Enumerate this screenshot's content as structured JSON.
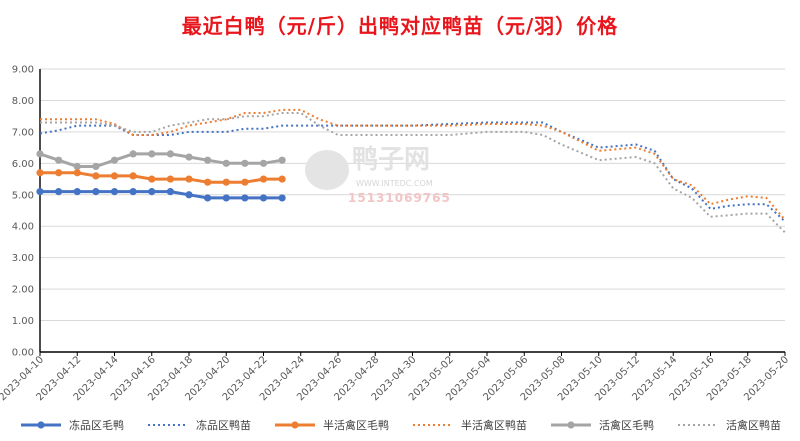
{
  "chart_data": {
    "type": "line",
    "title": "最近白鸭（元/斤）出鸭对应鸭苗（元/羽）价格",
    "xlabel": "",
    "ylabel": "",
    "ylim": [
      0,
      9
    ],
    "y_ticks": [
      "0.00",
      "1.00",
      "2.00",
      "3.00",
      "4.00",
      "5.00",
      "6.00",
      "7.00",
      "8.00",
      "9.00"
    ],
    "x_ticks": [
      "2023-04-10",
      "2023-04-12",
      "2023-04-14",
      "2023-04-16",
      "2023-04-18",
      "2023-04-20",
      "2023-04-22",
      "2023-04-24",
      "2023-04-26",
      "2023-04-28",
      "2023-04-30",
      "2023-05-02",
      "2023-05-04",
      "2023-05-06",
      "2023-05-08",
      "2023-05-10",
      "2023-05-12",
      "2023-05-14",
      "2023-05-16",
      "2023-05-18",
      "2023-05-20"
    ],
    "x_start": "2023-04-10",
    "x_end": "2023-05-20",
    "grid": "horizontal",
    "legend_position": "bottom",
    "series": [
      {
        "name": "冻品区毛鸭",
        "color": "#4472c4",
        "style": "solid-marker",
        "points": [
          [
            "2023-04-10",
            5.1
          ],
          [
            "2023-04-11",
            5.1
          ],
          [
            "2023-04-12",
            5.1
          ],
          [
            "2023-04-13",
            5.1
          ],
          [
            "2023-04-14",
            5.1
          ],
          [
            "2023-04-15",
            5.1
          ],
          [
            "2023-04-16",
            5.1
          ],
          [
            "2023-04-17",
            5.1
          ],
          [
            "2023-04-18",
            5.0
          ],
          [
            "2023-04-19",
            4.9
          ],
          [
            "2023-04-20",
            4.9
          ],
          [
            "2023-04-21",
            4.9
          ],
          [
            "2023-04-22",
            4.9
          ],
          [
            "2023-04-23",
            4.9
          ]
        ]
      },
      {
        "name": "冻品区鸭苗",
        "color": "#4472c4",
        "style": "dotted",
        "points": [
          [
            "2023-04-10",
            6.95
          ],
          [
            "2023-04-11",
            7.05
          ],
          [
            "2023-04-12",
            7.2
          ],
          [
            "2023-04-13",
            7.2
          ],
          [
            "2023-04-14",
            7.2
          ],
          [
            "2023-04-15",
            6.9
          ],
          [
            "2023-04-16",
            6.9
          ],
          [
            "2023-04-17",
            6.9
          ],
          [
            "2023-04-18",
            7.0
          ],
          [
            "2023-04-19",
            7.0
          ],
          [
            "2023-04-20",
            7.0
          ],
          [
            "2023-04-21",
            7.1
          ],
          [
            "2023-04-22",
            7.1
          ],
          [
            "2023-04-23",
            7.2
          ],
          [
            "2023-04-26",
            7.2
          ],
          [
            "2023-04-30",
            7.2
          ],
          [
            "2023-05-02",
            7.25
          ],
          [
            "2023-05-04",
            7.3
          ],
          [
            "2023-05-06",
            7.3
          ],
          [
            "2023-05-07",
            7.3
          ],
          [
            "2023-05-08",
            7.0
          ],
          [
            "2023-05-10",
            6.5
          ],
          [
            "2023-05-12",
            6.6
          ],
          [
            "2023-05-13",
            6.4
          ],
          [
            "2023-05-14",
            5.5
          ],
          [
            "2023-05-15",
            5.2
          ],
          [
            "2023-05-16",
            4.55
          ],
          [
            "2023-05-17",
            4.65
          ],
          [
            "2023-05-18",
            4.7
          ],
          [
            "2023-05-19",
            4.7
          ],
          [
            "2023-05-20",
            4.15
          ]
        ]
      },
      {
        "name": "半活禽区毛鸭",
        "color": "#ed7d31",
        "style": "solid-marker",
        "points": [
          [
            "2023-04-10",
            5.7
          ],
          [
            "2023-04-11",
            5.7
          ],
          [
            "2023-04-12",
            5.7
          ],
          [
            "2023-04-13",
            5.6
          ],
          [
            "2023-04-14",
            5.6
          ],
          [
            "2023-04-15",
            5.6
          ],
          [
            "2023-04-16",
            5.5
          ],
          [
            "2023-04-17",
            5.5
          ],
          [
            "2023-04-18",
            5.5
          ],
          [
            "2023-04-19",
            5.4
          ],
          [
            "2023-04-20",
            5.4
          ],
          [
            "2023-04-21",
            5.4
          ],
          [
            "2023-04-22",
            5.5
          ],
          [
            "2023-04-23",
            5.5
          ]
        ]
      },
      {
        "name": "半活禽区鸭苗",
        "color": "#ed7d31",
        "style": "dotted",
        "points": [
          [
            "2023-04-10",
            7.4
          ],
          [
            "2023-04-11",
            7.4
          ],
          [
            "2023-04-12",
            7.4
          ],
          [
            "2023-04-13",
            7.4
          ],
          [
            "2023-04-14",
            7.25
          ],
          [
            "2023-04-15",
            6.9
          ],
          [
            "2023-04-16",
            6.9
          ],
          [
            "2023-04-17",
            7.0
          ],
          [
            "2023-04-18",
            7.2
          ],
          [
            "2023-04-19",
            7.3
          ],
          [
            "2023-04-20",
            7.4
          ],
          [
            "2023-04-21",
            7.6
          ],
          [
            "2023-04-22",
            7.6
          ],
          [
            "2023-04-23",
            7.7
          ],
          [
            "2023-04-24",
            7.7
          ],
          [
            "2023-04-25",
            7.4
          ],
          [
            "2023-04-26",
            7.2
          ],
          [
            "2023-04-30",
            7.2
          ],
          [
            "2023-05-02",
            7.2
          ],
          [
            "2023-05-04",
            7.25
          ],
          [
            "2023-05-06",
            7.25
          ],
          [
            "2023-05-07",
            7.2
          ],
          [
            "2023-05-08",
            7.0
          ],
          [
            "2023-05-10",
            6.4
          ],
          [
            "2023-05-12",
            6.5
          ],
          [
            "2023-05-13",
            6.3
          ],
          [
            "2023-05-14",
            5.5
          ],
          [
            "2023-05-15",
            5.3
          ],
          [
            "2023-05-16",
            4.7
          ],
          [
            "2023-05-17",
            4.85
          ],
          [
            "2023-05-18",
            4.95
          ],
          [
            "2023-05-19",
            4.9
          ],
          [
            "2023-05-20",
            4.2
          ]
        ]
      },
      {
        "name": "活禽区毛鸭",
        "color": "#a5a5a5",
        "style": "solid-marker",
        "points": [
          [
            "2023-04-10",
            6.3
          ],
          [
            "2023-04-11",
            6.1
          ],
          [
            "2023-04-12",
            5.9
          ],
          [
            "2023-04-13",
            5.9
          ],
          [
            "2023-04-14",
            6.1
          ],
          [
            "2023-04-15",
            6.3
          ],
          [
            "2023-04-16",
            6.3
          ],
          [
            "2023-04-17",
            6.3
          ],
          [
            "2023-04-18",
            6.2
          ],
          [
            "2023-04-19",
            6.1
          ],
          [
            "2023-04-20",
            6.0
          ],
          [
            "2023-04-21",
            6.0
          ],
          [
            "2023-04-22",
            6.0
          ],
          [
            "2023-04-23",
            6.1
          ]
        ]
      },
      {
        "name": "活禽区鸭苗",
        "color": "#a5a5a5",
        "style": "dotted",
        "points": [
          [
            "2023-04-10",
            7.3
          ],
          [
            "2023-04-11",
            7.3
          ],
          [
            "2023-04-12",
            7.3
          ],
          [
            "2023-04-13",
            7.3
          ],
          [
            "2023-04-14",
            7.2
          ],
          [
            "2023-04-15",
            7.0
          ],
          [
            "2023-04-16",
            7.0
          ],
          [
            "2023-04-17",
            7.2
          ],
          [
            "2023-04-18",
            7.3
          ],
          [
            "2023-04-19",
            7.4
          ],
          [
            "2023-04-20",
            7.4
          ],
          [
            "2023-04-21",
            7.5
          ],
          [
            "2023-04-22",
            7.5
          ],
          [
            "2023-04-23",
            7.6
          ],
          [
            "2023-04-24",
            7.6
          ],
          [
            "2023-04-25",
            7.2
          ],
          [
            "2023-04-26",
            6.9
          ],
          [
            "2023-04-30",
            6.9
          ],
          [
            "2023-05-02",
            6.9
          ],
          [
            "2023-05-04",
            7.0
          ],
          [
            "2023-05-06",
            7.0
          ],
          [
            "2023-05-07",
            6.9
          ],
          [
            "2023-05-08",
            6.6
          ],
          [
            "2023-05-10",
            6.1
          ],
          [
            "2023-05-12",
            6.2
          ],
          [
            "2023-05-13",
            6.0
          ],
          [
            "2023-05-14",
            5.2
          ],
          [
            "2023-05-15",
            4.9
          ],
          [
            "2023-05-16",
            4.3
          ],
          [
            "2023-05-17",
            4.35
          ],
          [
            "2023-05-18",
            4.4
          ],
          [
            "2023-05-19",
            4.4
          ],
          [
            "2023-05-20",
            3.8
          ]
        ]
      }
    ]
  },
  "watermark": {
    "brand": "鸭子网",
    "url": "WWW.INTEDC.COM",
    "phone": "15131069765"
  }
}
